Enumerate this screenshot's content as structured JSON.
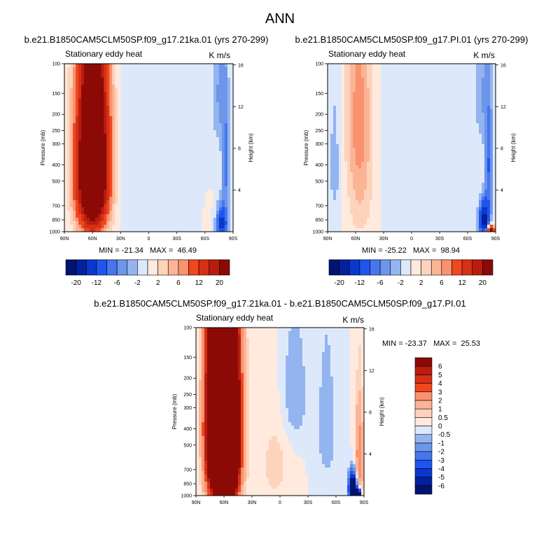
{
  "figure_title": "ANN",
  "colors": {
    "reds": [
      "#ffeadd",
      "#fdd3bc",
      "#fbb496",
      "#f9926e",
      "#f76d44",
      "#f0471d",
      "#d73016",
      "#b81d10",
      "#8b0a06"
    ],
    "blues": [
      "#dde9fb",
      "#bbd2f5",
      "#93b4ef",
      "#6d95ea",
      "#4576ed",
      "#1f55ee",
      "#0b38cc",
      "#04209e",
      "#021370"
    ],
    "white": "#f5f5f5"
  },
  "chart_data": [
    {
      "id": "panel1",
      "type": "contour",
      "case_title": "b.e21.B1850CAM5CLM50SP.f09_g17.21ka.01 (yrs 270-299)",
      "variable": "Stationary eddy heat",
      "units": "K m/s",
      "ylabel": "Pressure (mb)",
      "ylabel_right": "Height (km)",
      "pressure_ticks": [
        100,
        150,
        200,
        250,
        300,
        400,
        500,
        700,
        850,
        1000
      ],
      "height_ticks": [
        4,
        8,
        12,
        16
      ],
      "lat_ticks": [
        "90N",
        "60N",
        "30N",
        "0",
        "30S",
        "60S",
        "90S"
      ],
      "min_label": "MIN = -21.34",
      "max_label": "MAX =  46.49",
      "colorbar_levels": [
        -20,
        -16,
        -12,
        -8,
        -6,
        -4,
        -2,
        0,
        2,
        4,
        6,
        8,
        12,
        16,
        20
      ],
      "colorbar_labels": [
        "-20",
        "-12",
        "-6",
        "-2",
        "2",
        "6",
        "12",
        "20"
      ],
      "field": [
        {
          "lat": 60,
          "p": 450,
          "amp": 44,
          "sx": 11,
          "sp": 330
        },
        {
          "lat": 58,
          "p": 200,
          "amp": 4,
          "sx": 12,
          "sp": 250
        },
        {
          "lat": -75,
          "p": 150,
          "amp": -4,
          "sx": 5,
          "sp": 100
        },
        {
          "lat": -82,
          "p": 400,
          "amp": -7,
          "sx": 3,
          "sp": 220
        },
        {
          "lat": -78,
          "p": 900,
          "amp": -14,
          "sx": 4,
          "sp": 150
        },
        {
          "lat": -55,
          "p": 400,
          "amp": -1.5,
          "sx": 10,
          "sp": 500
        },
        {
          "lat": 20,
          "p": 350,
          "amp": -1.2,
          "sx": 12,
          "sp": 400
        },
        {
          "lat": -60,
          "p": 700,
          "amp": 1.2,
          "sx": 8,
          "sp": 300
        }
      ]
    },
    {
      "id": "panel2",
      "type": "contour",
      "case_title": "b.e21.B1850CAM5CLM50SP.f09_g17.PI.01 (yrs 270-299)",
      "variable": "Stationary eddy heat",
      "units": "K m/s",
      "ylabel": "Pressure (mb)",
      "ylabel_right": "Height (km)",
      "pressure_ticks": [
        100,
        150,
        200,
        250,
        300,
        400,
        500,
        700,
        850,
        1000
      ],
      "height_ticks": [
        4,
        8,
        12,
        16
      ],
      "lat_ticks": [
        "90N",
        "60N",
        "30N",
        "0",
        "30S",
        "60S",
        "90S"
      ],
      "min_label": "MIN = -25.22",
      "max_label": "MAX =  98.94",
      "colorbar_levels": [
        -20,
        -16,
        -12,
        -8,
        -6,
        -4,
        -2,
        0,
        2,
        4,
        6,
        8,
        12,
        16,
        20
      ],
      "colorbar_labels": [
        "-20",
        "-12",
        "-6",
        "-2",
        "2",
        "6",
        "12",
        "20"
      ],
      "field": [
        {
          "lat": 55,
          "p": 450,
          "amp": 4.5,
          "sx": 10,
          "sp": 400
        },
        {
          "lat": 58,
          "p": 170,
          "amp": 3.5,
          "sx": 10,
          "sp": 200
        },
        {
          "lat": 82,
          "p": 400,
          "amp": -3,
          "sx": 5,
          "sp": 300
        },
        {
          "lat": -75,
          "p": 150,
          "amp": -4,
          "sx": 5,
          "sp": 100
        },
        {
          "lat": -83,
          "p": 400,
          "amp": -8,
          "sx": 3,
          "sp": 220
        },
        {
          "lat": -78,
          "p": 850,
          "amp": -18,
          "sx": 4,
          "sp": 150
        },
        {
          "lat": -85,
          "p": 990,
          "amp": 25,
          "sx": 3,
          "sp": 50
        },
        {
          "lat": 20,
          "p": 350,
          "amp": -1.2,
          "sx": 12,
          "sp": 400
        }
      ]
    },
    {
      "id": "diff",
      "type": "contour",
      "case_title": "b.e21.B1850CAM5CLM50SP.f09_g17.21ka.01 - b.e21.B1850CAM5CLM50SP.f09_g17.PI.01",
      "variable": "Stationary eddy heat",
      "units": "K m/s",
      "ylabel": "Pressure (mb)",
      "ylabel_right": "Height (km)",
      "pressure_ticks": [
        100,
        150,
        200,
        250,
        300,
        400,
        500,
        700,
        850,
        1000
      ],
      "height_ticks": [
        4,
        8,
        12,
        16
      ],
      "lat_ticks": [
        "90N",
        "60N",
        "30N",
        "0",
        "30S",
        "60S",
        "90S"
      ],
      "min_label": "MIN = -23.37",
      "max_label": "MAX =  25.53",
      "colorbar_levels": [
        -6,
        -5,
        -4,
        -3,
        -2,
        -1,
        -0.5,
        0,
        0.5,
        1,
        2,
        3,
        4,
        5,
        6
      ],
      "colorbar_labels": [
        "-6",
        "-5",
        "-4",
        "-3",
        "-2",
        "-1",
        "-0.5",
        "0",
        "0.5",
        "1",
        "2",
        "3",
        "4",
        "5",
        "6"
      ],
      "field": [
        {
          "lat": 60,
          "p": 450,
          "amp": 38,
          "sx": 9,
          "sp": 380
        },
        {
          "lat": 62,
          "p": 180,
          "amp": 1.5,
          "sx": 10,
          "sp": 120
        },
        {
          "lat": 78,
          "p": 400,
          "amp": 2.5,
          "sx": 4,
          "sp": 300
        },
        {
          "lat": -15,
          "p": 250,
          "amp": -1,
          "sx": 10,
          "sp": 150
        },
        {
          "lat": -50,
          "p": 400,
          "amp": -0.8,
          "sx": 8,
          "sp": 300
        },
        {
          "lat": -85,
          "p": 600,
          "amp": 3,
          "sx": 3,
          "sp": 250
        },
        {
          "lat": -78,
          "p": 900,
          "amp": -10,
          "sx": 3,
          "sp": 120
        },
        {
          "lat": -83,
          "p": 980,
          "amp": -20,
          "sx": 2,
          "sp": 40
        },
        {
          "lat": 5,
          "p": 650,
          "amp": 0.7,
          "sx": 12,
          "sp": 300
        }
      ]
    }
  ]
}
